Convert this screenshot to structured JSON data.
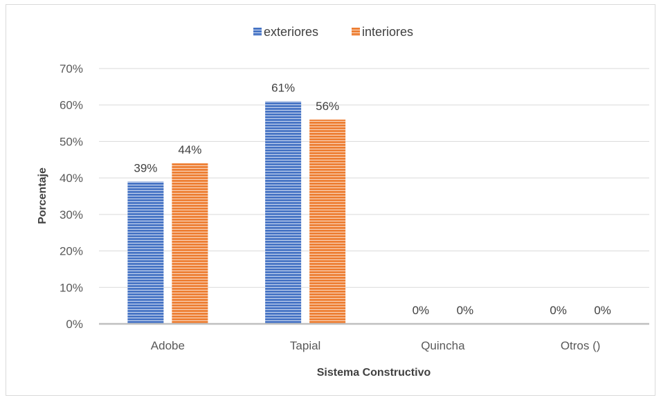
{
  "chart_data": {
    "type": "bar",
    "title": "",
    "categories": [
      "Adobe",
      "Tapial",
      "Quincha",
      "Otros ()"
    ],
    "series": [
      {
        "name": "exteriores",
        "values": [
          0.39,
          0.61,
          0,
          0
        ],
        "labels": [
          "39%",
          "61%",
          "0%",
          "0%"
        ],
        "color": "#4472c4"
      },
      {
        "name": "interiores",
        "values": [
          0.44,
          0.56,
          0,
          0
        ],
        "labels": [
          "44%",
          "56%",
          "0%",
          "0%"
        ],
        "color": "#ed7d31"
      }
    ],
    "xlabel": "Sistema Constructivo",
    "ylabel": "Porcentaje",
    "ylim": [
      0,
      0.7
    ],
    "yticks": [
      {
        "value": 0,
        "label": "0%"
      },
      {
        "value": 0.1,
        "label": "10%"
      },
      {
        "value": 0.2,
        "label": "20%"
      },
      {
        "value": 0.3,
        "label": "30%"
      },
      {
        "value": 0.4,
        "label": "40%"
      },
      {
        "value": 0.5,
        "label": "50%"
      },
      {
        "value": 0.6,
        "label": "60%"
      },
      {
        "value": 0.7,
        "label": "70%"
      }
    ],
    "grid": true,
    "legend_position": "top"
  }
}
